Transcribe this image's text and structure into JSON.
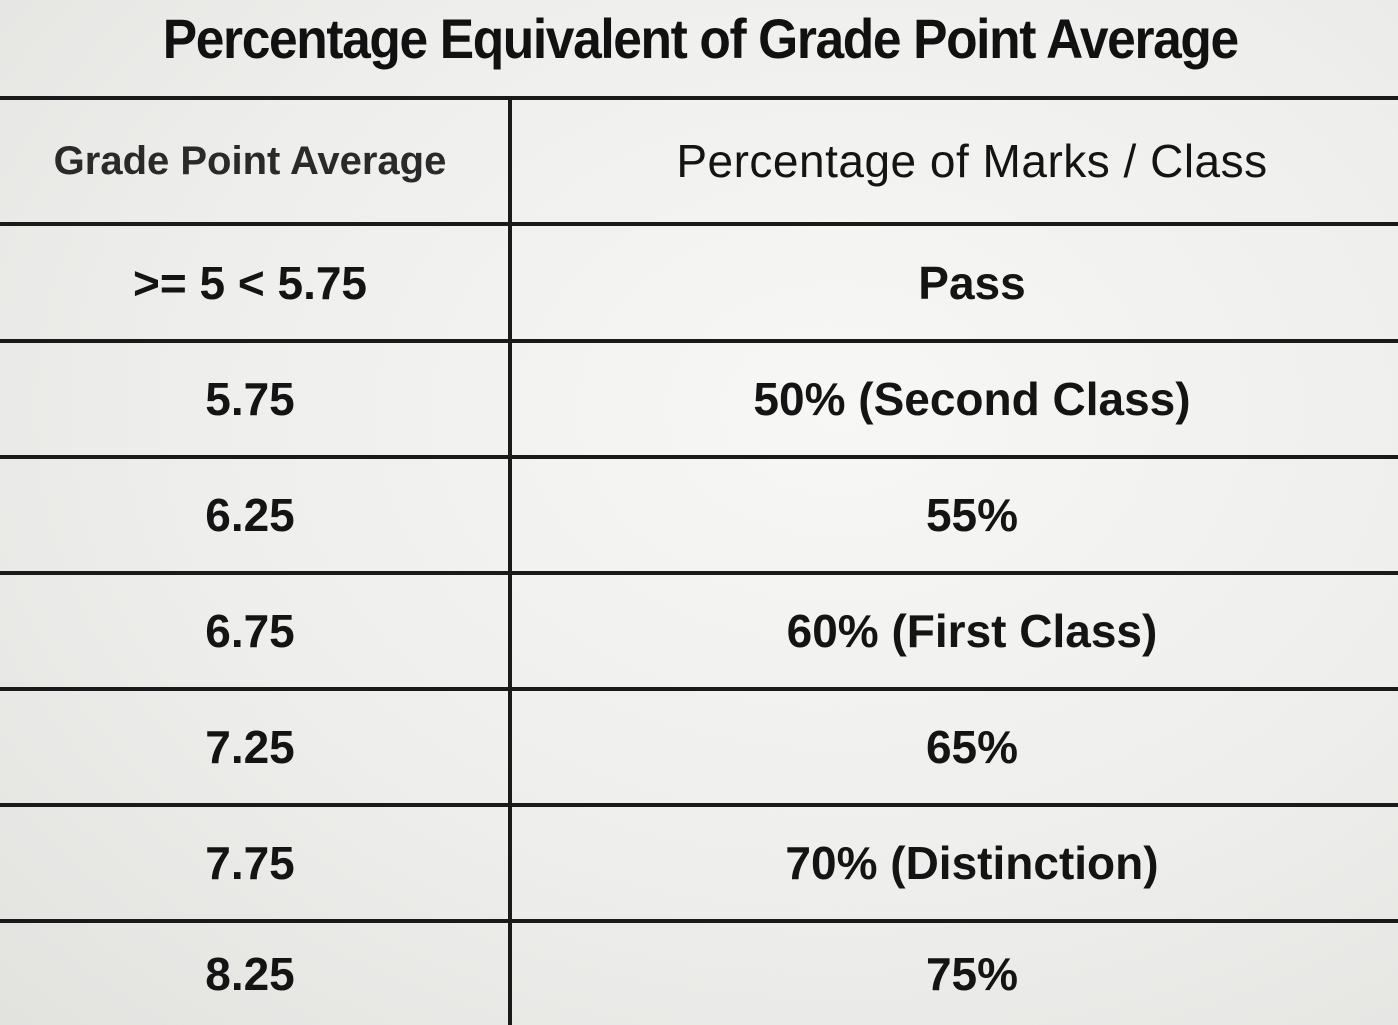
{
  "title": "Percentage Equivalent of Grade Point Average",
  "table": {
    "headers": [
      "Grade Point Average",
      "Percentage of Marks / Class"
    ],
    "rows": [
      [
        ">= 5 < 5.75",
        "Pass"
      ],
      [
        "5.75",
        "50% (Second Class)"
      ],
      [
        "6.25",
        "55%"
      ],
      [
        "6.75",
        "60% (First Class)"
      ],
      [
        "7.25",
        "65%"
      ],
      [
        "7.75",
        "70% (Distinction)"
      ],
      [
        "8.25",
        "75%"
      ]
    ]
  }
}
